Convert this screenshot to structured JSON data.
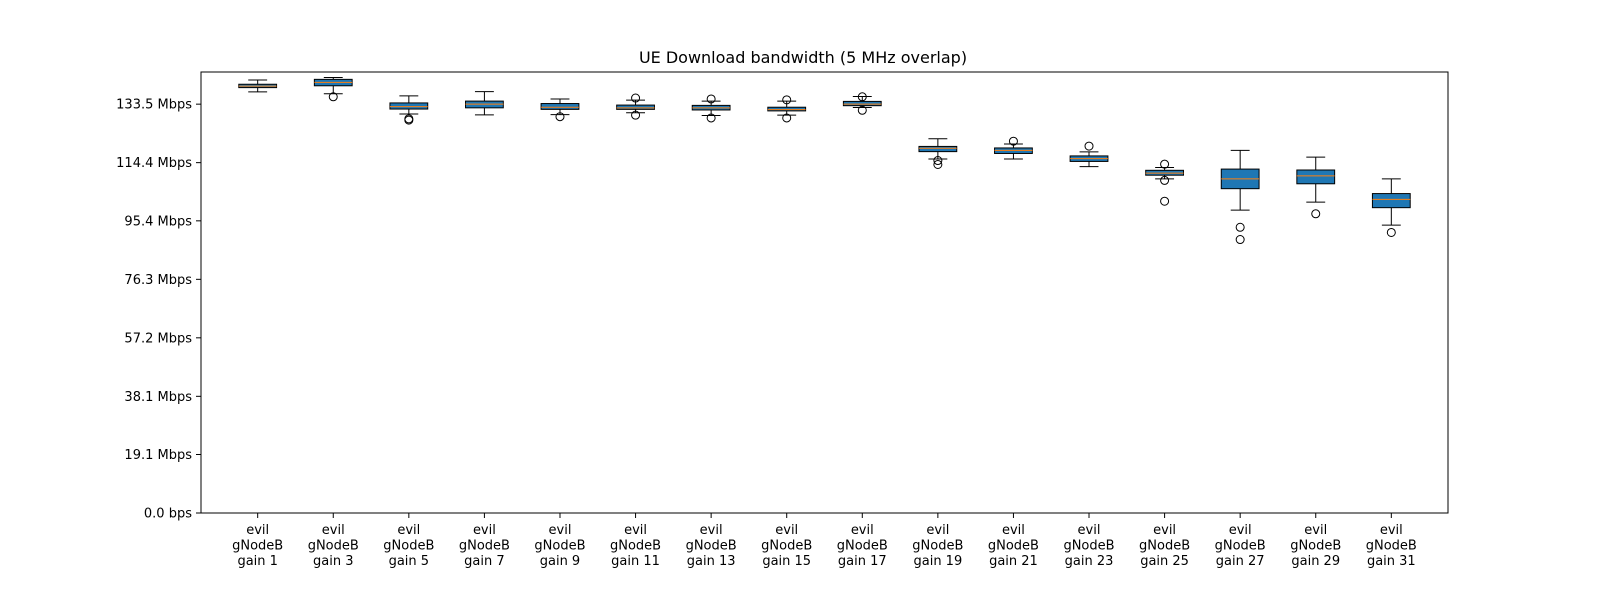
{
  "chart_data": {
    "type": "box",
    "title": "UE Download bandwidth (5 MHz overlap)",
    "xlabel": "",
    "ylabel": "",
    "ylim": [
      0,
      144
    ],
    "y_ticks": [
      {
        "value": 0.0,
        "label": "0.0 bps"
      },
      {
        "value": 19.1,
        "label": "19.1 Mbps"
      },
      {
        "value": 38.1,
        "label": "38.1 Mbps"
      },
      {
        "value": 57.2,
        "label": "57.2 Mbps"
      },
      {
        "value": 76.3,
        "label": "76.3 Mbps"
      },
      {
        "value": 95.4,
        "label": "95.4 Mbps"
      },
      {
        "value": 114.4,
        "label": "114.4 Mbps"
      },
      {
        "value": 133.5,
        "label": "133.5 Mbps"
      }
    ],
    "grid": false,
    "legend": "none",
    "box_color": "#1f77b4",
    "median_color": "#ff7f0e",
    "categories": [
      [
        "evil",
        "gNodeB",
        "gain 1"
      ],
      [
        "evil",
        "gNodeB",
        "gain 3"
      ],
      [
        "evil",
        "gNodeB",
        "gain 5"
      ],
      [
        "evil",
        "gNodeB",
        "gain 7"
      ],
      [
        "evil",
        "gNodeB",
        "gain 9"
      ],
      [
        "evil",
        "gNodeB",
        "gain 11"
      ],
      [
        "evil",
        "gNodeB",
        "gain 13"
      ],
      [
        "evil",
        "gNodeB",
        "gain 15"
      ],
      [
        "evil",
        "gNodeB",
        "gain 17"
      ],
      [
        "evil",
        "gNodeB",
        "gain 19"
      ],
      [
        "evil",
        "gNodeB",
        "gain 21"
      ],
      [
        "evil",
        "gNodeB",
        "gain 23"
      ],
      [
        "evil",
        "gNodeB",
        "gain 25"
      ],
      [
        "evil",
        "gNodeB",
        "gain 27"
      ],
      [
        "evil",
        "gNodeB",
        "gain 29"
      ],
      [
        "evil",
        "gNodeB",
        "gain 31"
      ]
    ],
    "boxes": [
      {
        "whislo": 137.5,
        "q1": 138.9,
        "med": 139.4,
        "q3": 140.0,
        "whishi": 141.4,
        "fliers": []
      },
      {
        "whislo": 136.9,
        "q1": 139.5,
        "med": 140.6,
        "q3": 141.6,
        "whishi": 142.2,
        "fliers": [
          135.9
        ]
      },
      {
        "whislo": 130.3,
        "q1": 131.9,
        "med": 132.7,
        "q3": 133.9,
        "whishi": 136.2,
        "fliers": [
          128.7,
          128.3
        ]
      },
      {
        "whislo": 130.0,
        "q1": 132.3,
        "med": 133.5,
        "q3": 134.5,
        "whishi": 137.6,
        "fliers": []
      },
      {
        "whislo": 130.1,
        "q1": 131.8,
        "med": 132.5,
        "q3": 133.7,
        "whishi": 135.2,
        "fliers": [
          129.4
        ]
      },
      {
        "whislo": 130.7,
        "q1": 131.8,
        "med": 132.3,
        "q3": 133.2,
        "whishi": 134.8,
        "fliers": [
          129.9,
          135.5
        ]
      },
      {
        "whislo": 129.8,
        "q1": 131.6,
        "med": 132.3,
        "q3": 133.1,
        "whishi": 134.5,
        "fliers": [
          129.0,
          135.2
        ]
      },
      {
        "whislo": 129.9,
        "q1": 131.3,
        "med": 131.7,
        "q3": 132.5,
        "whishi": 134.5,
        "fliers": [
          129.0,
          134.9
        ]
      },
      {
        "whislo": 132.4,
        "q1": 133.0,
        "med": 133.5,
        "q3": 134.4,
        "whishi": 136.0,
        "fliers": [
          131.5,
          135.9
        ]
      },
      {
        "whislo": 115.6,
        "q1": 118.0,
        "med": 119.1,
        "q3": 119.7,
        "whishi": 122.2,
        "fliers": [
          113.8,
          115.1
        ]
      },
      {
        "whislo": 115.6,
        "q1": 117.4,
        "med": 118.4,
        "q3": 119.2,
        "whishi": 120.5,
        "fliers": [
          121.4
        ]
      },
      {
        "whislo": 113.1,
        "q1": 114.8,
        "med": 115.7,
        "q3": 116.6,
        "whishi": 117.9,
        "fliers": [
          119.8
        ]
      },
      {
        "whislo": 109.1,
        "q1": 110.3,
        "med": 111.0,
        "q3": 111.9,
        "whishi": 112.8,
        "fliers": [
          113.9,
          108.6,
          101.8
        ]
      },
      {
        "whislo": 98.9,
        "q1": 105.9,
        "med": 109.1,
        "q3": 112.3,
        "whishi": 118.4,
        "fliers": [
          93.3,
          89.3
        ]
      },
      {
        "whislo": 101.5,
        "q1": 107.5,
        "med": 110.1,
        "q3": 112.0,
        "whishi": 116.2,
        "fliers": [
          97.7
        ]
      },
      {
        "whislo": 94.0,
        "q1": 99.7,
        "med": 102.4,
        "q3": 104.3,
        "whishi": 109.1,
        "fliers": [
          91.6
        ]
      }
    ]
  }
}
